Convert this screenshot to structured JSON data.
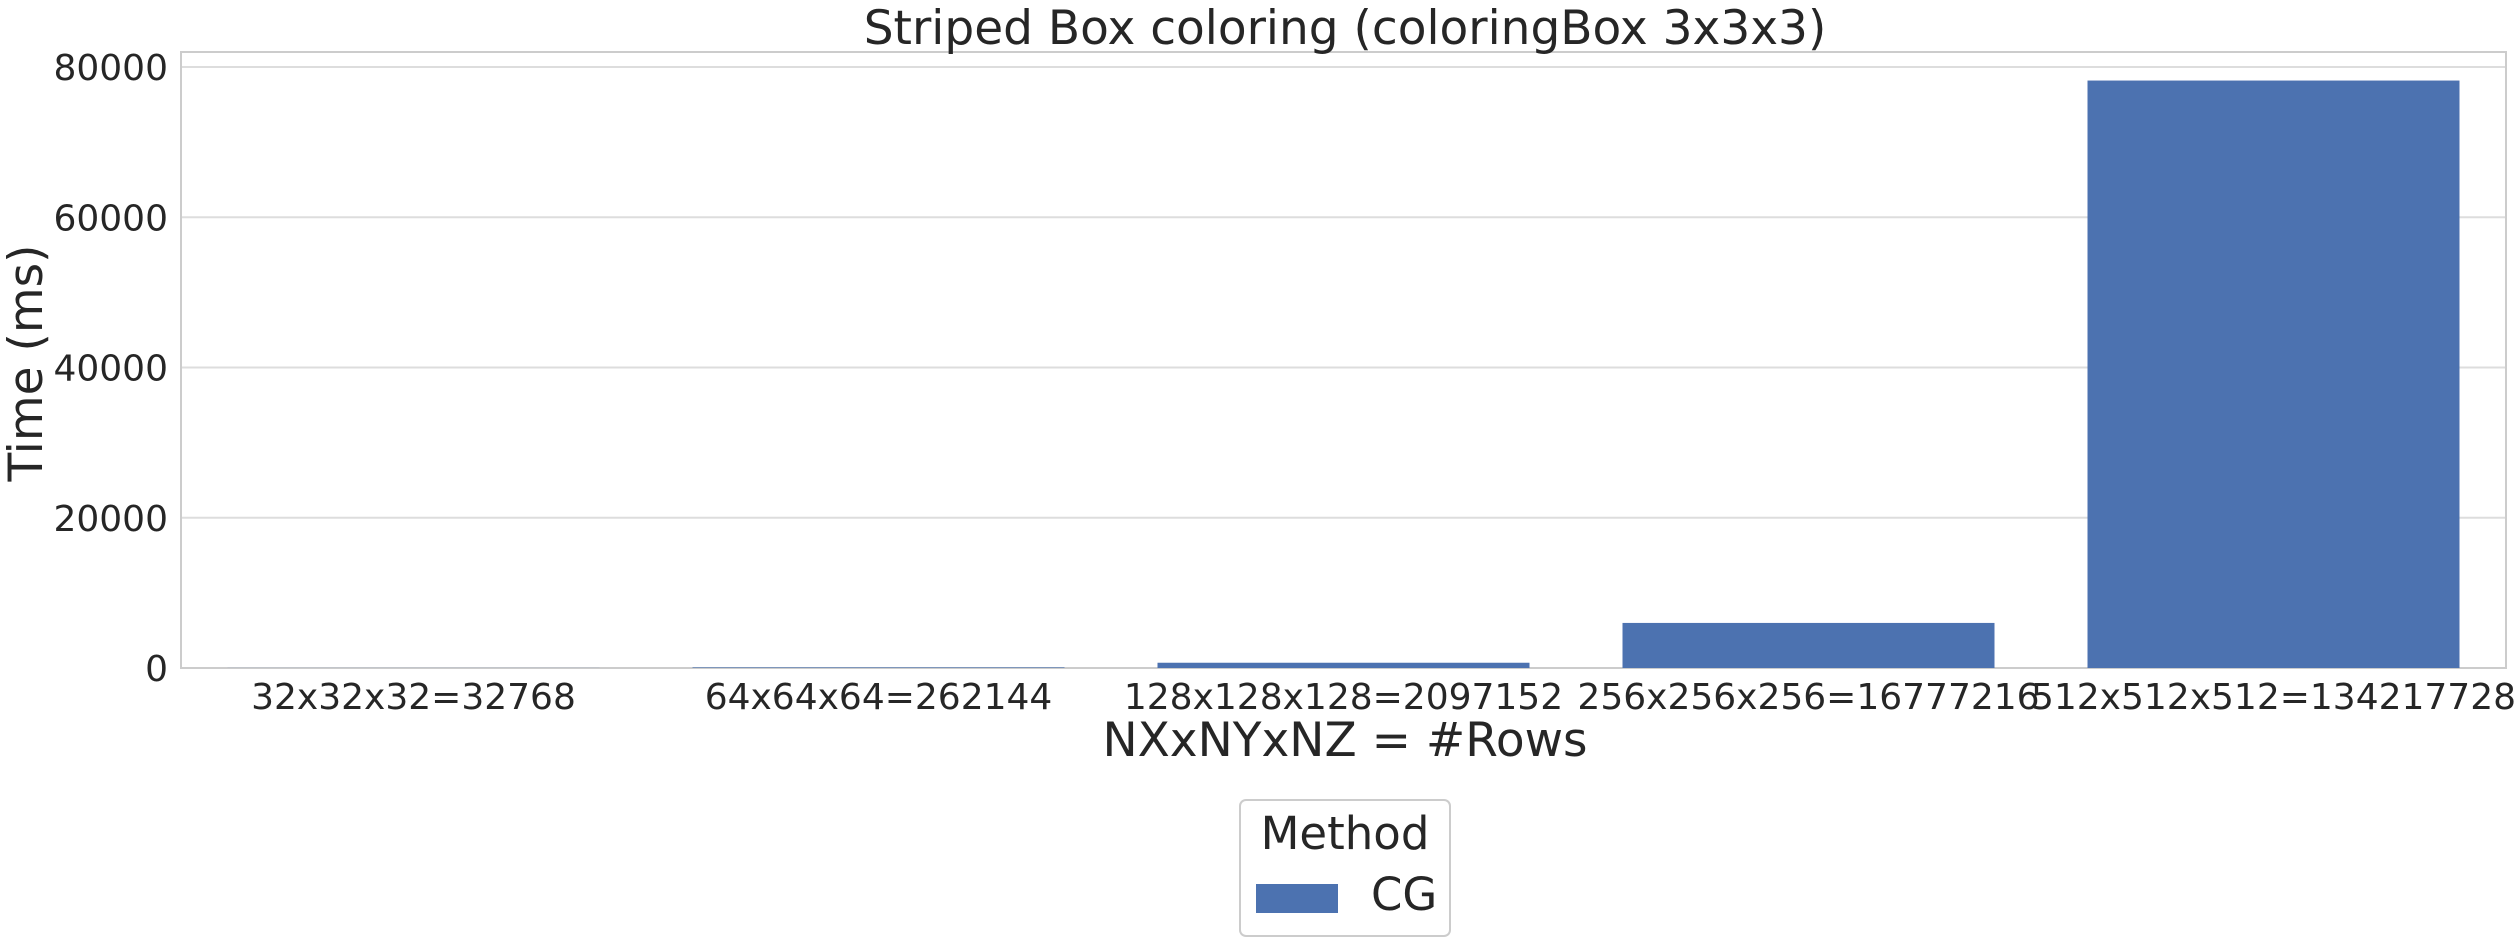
{
  "chart_data": {
    "type": "bar",
    "title": "Striped Box coloring (coloringBox 3x3x3)",
    "xlabel": "NXxNYxNZ = #Rows",
    "ylabel": "Time (ms)",
    "categories": [
      "32x32x32=32768",
      "64x64x64=262144",
      "128x128x128=2097152",
      "256x256x256=16777216",
      "512x512x512=134217728"
    ],
    "series": [
      {
        "name": "CG",
        "color": "#4c72b0",
        "values": [
          10,
          80,
          700,
          6000,
          78200
        ]
      }
    ],
    "ylim": [
      0,
      82000
    ],
    "yticks": [
      0,
      20000,
      40000,
      60000,
      80000
    ],
    "ytick_labels": [
      "0",
      "20000",
      "40000",
      "60000",
      "80000"
    ],
    "grid": "horizontal",
    "legend": {
      "title": "Method",
      "position": "bottom-center"
    },
    "colors": {
      "grid": "#dddddd",
      "axes_edge": "#cccccc",
      "text": "#262626"
    }
  }
}
